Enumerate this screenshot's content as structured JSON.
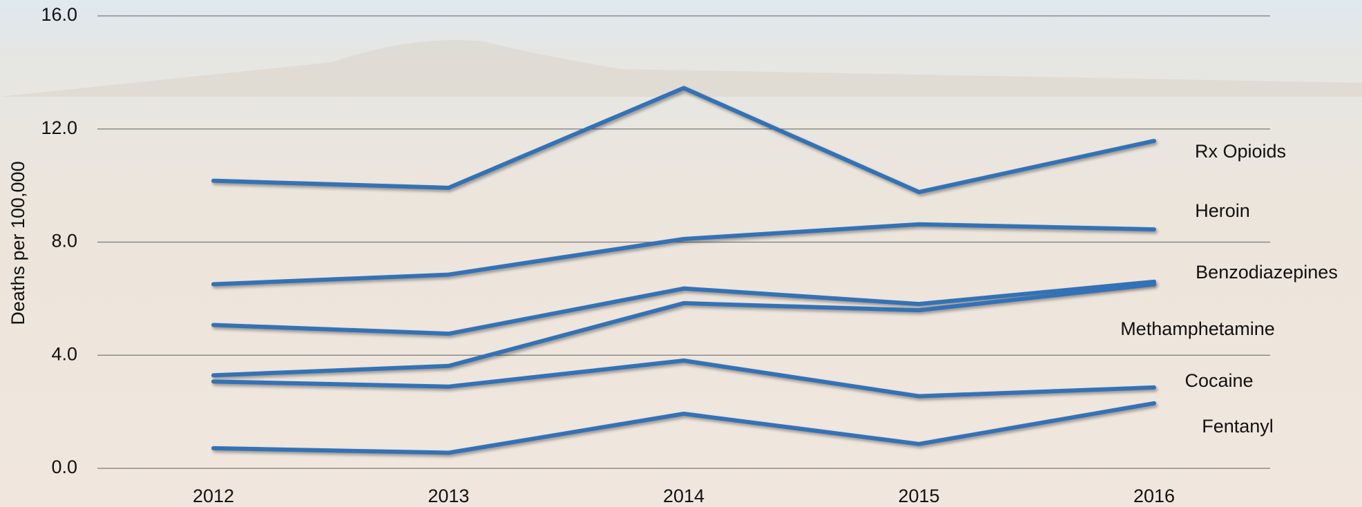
{
  "chart_data": {
    "type": "line",
    "y_label": "Deaths per 100,000",
    "categories": [
      "2012",
      "2013",
      "2014",
      "2015",
      "2016"
    ],
    "series": [
      {
        "name": "Rx Opioids",
        "color": "#3372b5",
        "values": [
          10.17,
          9.92,
          13.45,
          9.77,
          11.58
        ]
      },
      {
        "name": "Heroin",
        "color": "#3372b5",
        "values": [
          6.51,
          6.85,
          8.11,
          8.63,
          8.45
        ]
      },
      {
        "name": "Benzodiazepines",
        "color": "#3372b5",
        "values": [
          5.07,
          4.76,
          6.36,
          5.81,
          6.6
        ]
      },
      {
        "name": "Methamphetamine",
        "color": "#3372b5",
        "values": [
          3.29,
          3.62,
          5.84,
          5.59,
          6.51
        ]
      },
      {
        "name": "Cocaine",
        "color": "#3372b5",
        "values": [
          3.07,
          2.89,
          3.81,
          2.55,
          2.86
        ]
      },
      {
        "name": "Fentanyl",
        "color": "#3372b5",
        "values": [
          0.71,
          0.55,
          1.93,
          0.86,
          2.3
        ]
      }
    ],
    "ylim": [
      0,
      16
    ],
    "yticks": [
      {
        "value": 0,
        "label": "0.0"
      },
      {
        "value": 4,
        "label": "4.0"
      },
      {
        "value": 8,
        "label": "8.0"
      },
      {
        "value": 12,
        "label": "12.0"
      },
      {
        "value": 16,
        "label": "16.0"
      }
    ],
    "grid": true
  }
}
